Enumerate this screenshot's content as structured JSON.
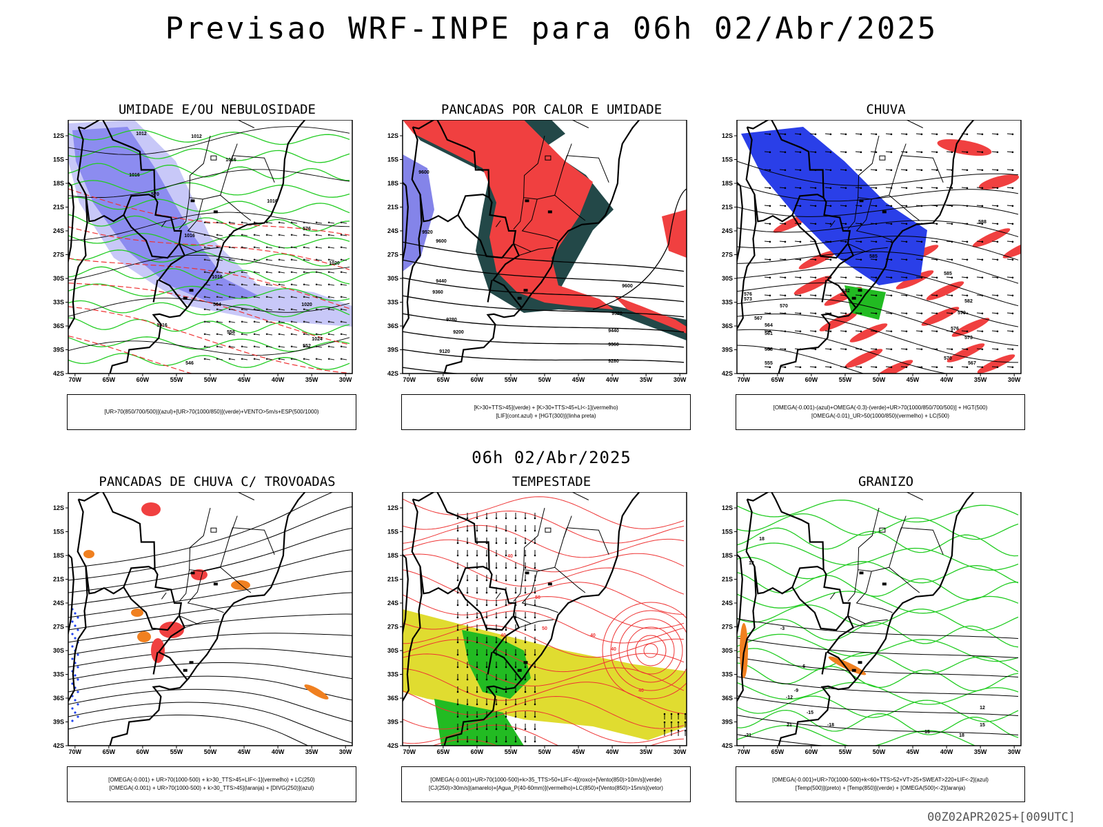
{
  "title": "Previsao WRF-INPE  para 06h 02/Abr/2025",
  "mid_date": "06h 02/Abr/2025",
  "footer": "00Z02APR2025+[009UTC]",
  "lat_ticks": [
    "12S",
    "15S",
    "18S",
    "21S",
    "24S",
    "27S",
    "30S",
    "33S",
    "36S",
    "39S",
    "42S"
  ],
  "lon_ticks": [
    "70W",
    "65W",
    "60W",
    "55W",
    "50W",
    "45W",
    "40W",
    "35W",
    "30W"
  ],
  "panels": [
    {
      "title": "UMIDADE E/OU NEBULOSIDADE",
      "legend": [
        "[UR>70(850/700/500)](azul)+[UR>70(1000/850)](verde)+VENTO>5m/s+ESP(500/1000)"
      ],
      "contour_labels": [
        "1012",
        "1012",
        "1016",
        "1016",
        "1016",
        "1016",
        "1016",
        "1016",
        "1020",
        "1020",
        "1024",
        "576",
        "570",
        "564",
        "558",
        "552",
        "546"
      ]
    },
    {
      "title": "PANCADAS POR CALOR E UMIDADE",
      "legend": [
        "[K>30+TTS>45](verde) + [K>30+TTS>45+LI<-1](vermelho)",
        "[LIF](cont.azul) + [HGT(300)](linha preta)"
      ],
      "contour_labels": [
        "9600",
        "9600",
        "9520",
        "9440",
        "9360",
        "9280",
        "9200",
        "9120",
        "9600",
        "9520",
        "9440",
        "9360",
        "9280"
      ]
    },
    {
      "title": "CHUVA",
      "legend": [
        "[OMEGA(-0.001)-(azul)+OMEGA(-0.3)-(verde)+UR>70(1000/850/700/500)] + HGT(500)",
        "[OMEGA(-0.01)_UR>50(1000/850)(vermelho) + LC(500)"
      ],
      "contour_labels": [
        "585",
        "582",
        "576",
        "573",
        "570",
        "567",
        "564",
        "561",
        "558",
        "555",
        "588",
        "585",
        "582",
        "579",
        "576",
        "573",
        "570",
        "567"
      ]
    },
    {
      "title": "PANCADAS DE CHUVA C/ TROVOADAS",
      "legend": [
        "[OMEGA(-0.001) + UR>70(1000-500) + k>30_TTS>45+LIF<-1](vermelho) + LC(250)",
        "[OMEGA(-0.001) + UR>70(1000-500) + k>30_TTS>45](laranja) + [DIVG(250)](azul)"
      ],
      "contour_labels": []
    },
    {
      "title": "TEMPESTADE",
      "legend": [
        "[OMEGA(-0.001)+UR>70(1000-500)+k>35_TTS>50+LIF<-4](roxo)+[Vento(850)>10m/s](verde)",
        "[CJ(250)>30m/s](amarelo)+[Agua_P(40-60mm)](vermelho)+LC(850)+[Vento(850)>15m/s](vetor)"
      ],
      "contour_labels": [
        "40",
        "50",
        "40",
        "50",
        "40",
        "40",
        "40"
      ]
    },
    {
      "title": "GRANIZO",
      "legend": [
        "[OMEGA(-0.001)+UR>70(1000-500)+k<60+TTS>52+VT>25+SWEAT>220+LIF<-2](azul)",
        "[Temp(500)](preto) + [Temp(850)](verde) + [OMEGA(500)<-2](laranja)"
      ],
      "contour_labels": [
        "-3",
        "-6",
        "-9",
        "-12",
        "-15",
        "-18",
        "-21",
        "12",
        "15",
        "12",
        "15",
        "18",
        "21",
        "18"
      ]
    }
  ],
  "colors": {
    "blue_fill": "#8c8cf0",
    "blue_light": "#c8c8f8",
    "green_contour": "#22cc22",
    "red_contour": "#ee3333",
    "red_fill": "#f04040",
    "teal_fill": "#234848",
    "yellow_fill": "#e0dc30",
    "orange_fill": "#f08020",
    "blue_dots": "#2244ee",
    "green_fill": "#22bb22"
  }
}
